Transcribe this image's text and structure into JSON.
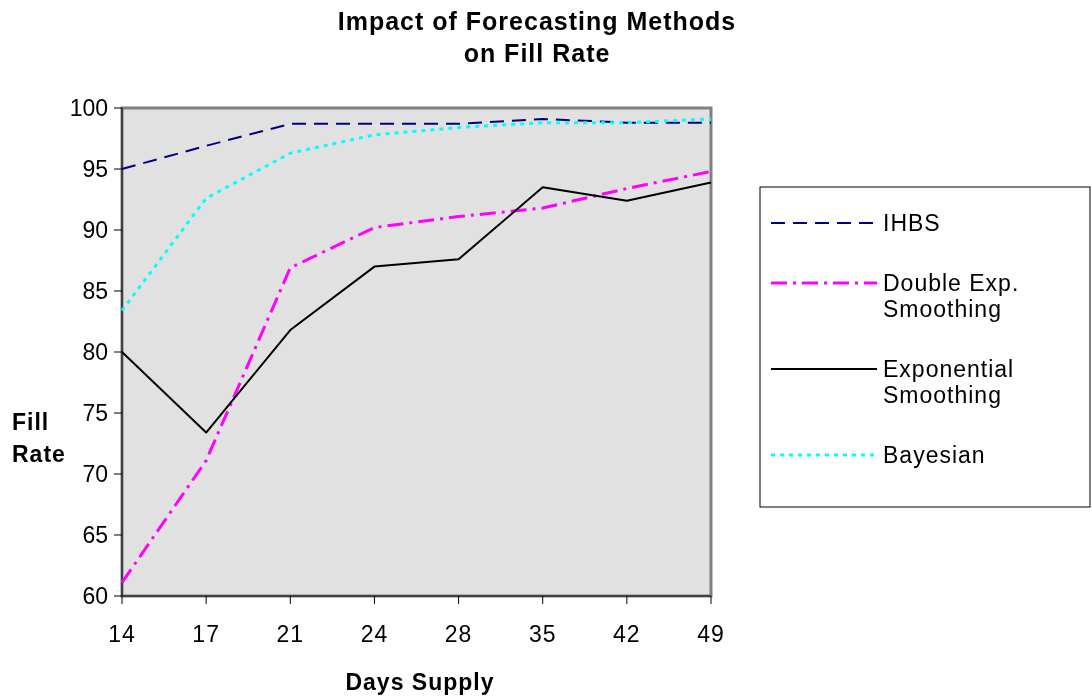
{
  "chart_data": {
    "type": "line",
    "title": "Impact of Forecasting Methods on Fill Rate",
    "xlabel": "Days Supply",
    "ylabel": "Fill Rate",
    "categories": [
      "14",
      "17",
      "21",
      "24",
      "28",
      "35",
      "42",
      "49"
    ],
    "ylim": [
      60,
      100
    ],
    "yticks": [
      60,
      65,
      70,
      75,
      80,
      85,
      90,
      95,
      100
    ],
    "grid": false,
    "legend": "right",
    "marker": "none",
    "series": [
      {
        "name": "IHBS",
        "color": "#000080",
        "line_style": "dashed",
        "values": [
          95,
          96.9,
          98.7,
          98.7,
          98.7,
          99.1,
          98.8,
          98.8
        ]
      },
      {
        "name": "Double Exp. Smoothing",
        "color": "#ff00ff",
        "line_style": "dashdot",
        "values": [
          61.1,
          71.1,
          86.9,
          90.2,
          91.1,
          91.8,
          93.4,
          94.8
        ]
      },
      {
        "name": "Exponential Smoothing",
        "color": "#000000",
        "line_style": "solid",
        "values": [
          80,
          73.4,
          81.8,
          87,
          87.6,
          93.5,
          92.4,
          93.9
        ]
      },
      {
        "name": "Bayesian",
        "color": "#00ffff",
        "line_style": "dotted",
        "values": [
          83.4,
          92.6,
          96.3,
          97.8,
          98.4,
          98.8,
          98.8,
          99.1
        ]
      }
    ]
  }
}
